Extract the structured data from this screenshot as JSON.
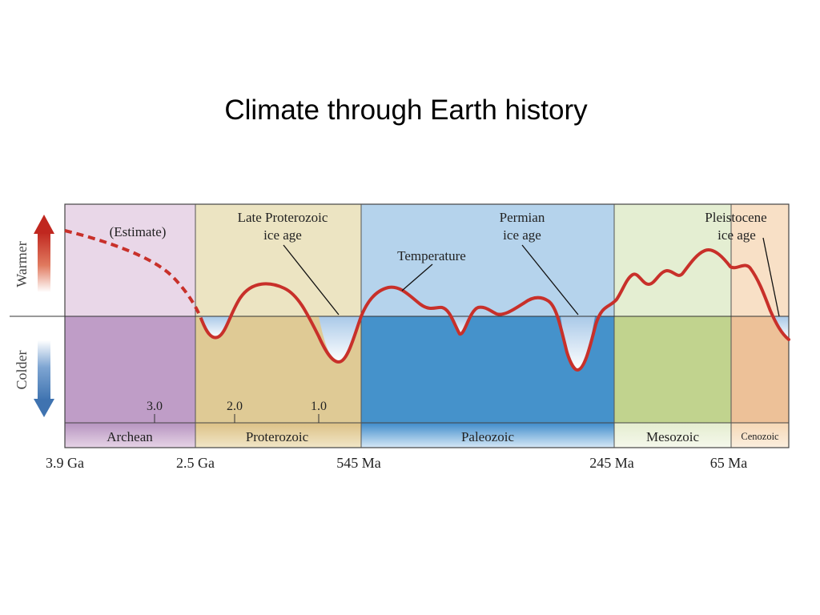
{
  "title": "Climate through Earth history",
  "axis": {
    "warmer_label": "Warmer",
    "colder_label": "Colder"
  },
  "annotations": {
    "estimate": "(Estimate)",
    "late_proterozoic_line1": "Late Proterozoic",
    "late_proterozoic_line2": "ice age",
    "permian_line1": "Permian",
    "permian_line2": "ice age",
    "pleistocene_line1": "Pleistocene",
    "pleistocene_line2": "ice age",
    "temperature": "Temperature"
  },
  "eons": [
    {
      "name": "Archean",
      "start_label": "3.9 Ga",
      "end_label": "2.5 Ga",
      "color_warm": "#e9d7e8",
      "color_cold": "#bf9dc7",
      "color_band": "#c7a6cd"
    },
    {
      "name": "Proterozoic",
      "start_label": "2.5 Ga",
      "end_label": "545 Ma",
      "color_warm": "#ece4c2",
      "color_cold": "#dfca95",
      "color_band": "#e2cc97"
    },
    {
      "name": "Paleozoic",
      "start_label": "545 Ma",
      "end_label": "245 Ma",
      "color_warm": "#b5d3ec",
      "color_cold": "#4592cb",
      "color_band": "#4a97cf"
    },
    {
      "name": "Mesozoic",
      "start_label": "245 Ma",
      "end_label": "65 Ma",
      "color_warm": "#e4eed2",
      "color_cold": "#c1d38e",
      "color_band": "#e6efd6"
    },
    {
      "name": "Cenozoic",
      "start_label": "65 Ma",
      "end_label": "",
      "color_warm": "#f8e0c6",
      "color_cold": "#edc198",
      "color_band": "#f7dfc6"
    }
  ],
  "boundary_labels": [
    "3.9 Ga",
    "2.5 Ga",
    "545 Ma",
    "245 Ma",
    "65 Ma"
  ],
  "ga_ticks": [
    "3.0",
    "2.0",
    "1.0"
  ],
  "colors": {
    "temperature_curve": "#c8302a",
    "warm_arrow": "#c0271f",
    "cold_arrow": "#3f73b0",
    "ice_fill": "#dde9f6"
  }
}
